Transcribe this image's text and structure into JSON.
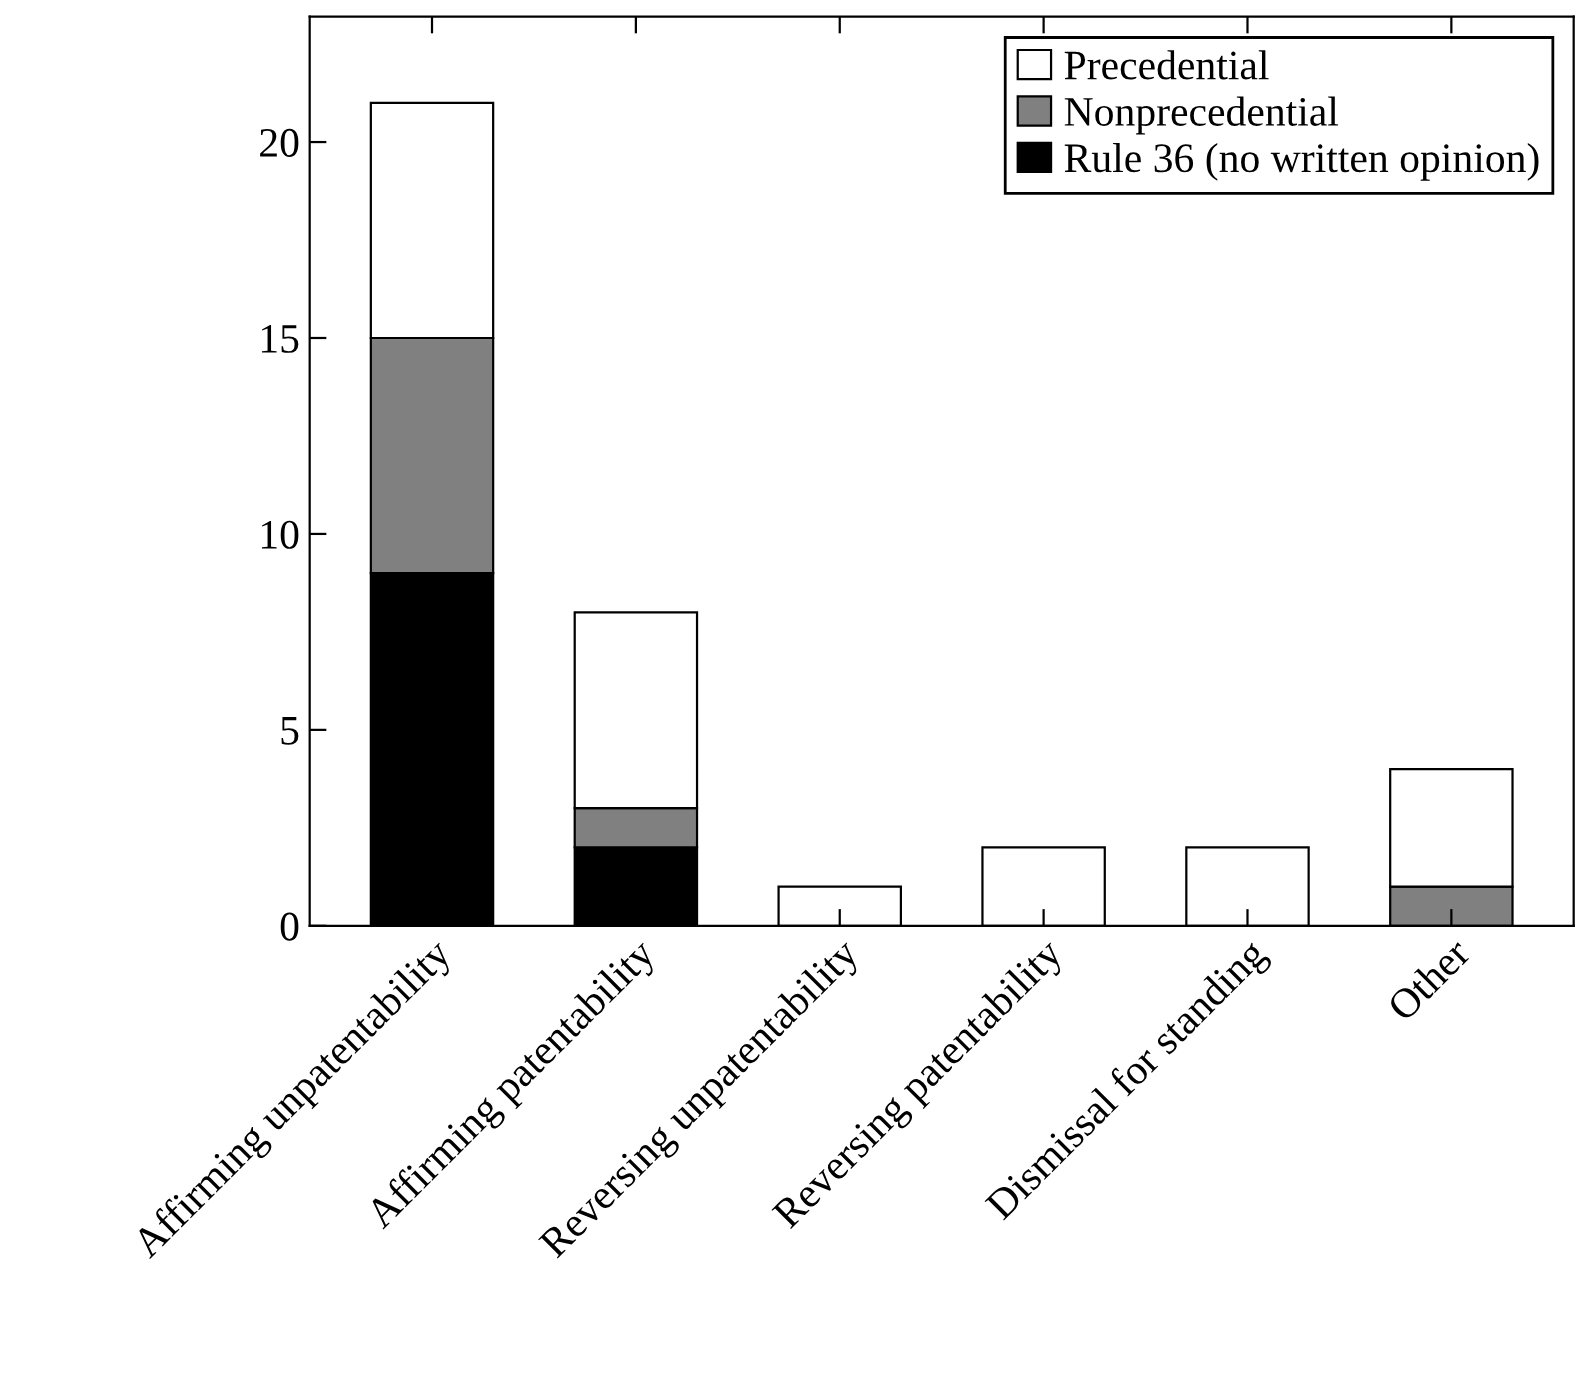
{
  "chart_data": {
    "type": "bar",
    "stacked": true,
    "categories": [
      "Affirming unpatentability",
      "Affirming patentability",
      "Reversing unpatentability",
      "Reversing patentability",
      "Dismissal for standing",
      "Other"
    ],
    "series": [
      {
        "name": "Rule 36 (no written opinion)",
        "color": "#000000",
        "values": [
          9,
          2,
          0,
          0,
          0,
          0
        ]
      },
      {
        "name": "Nonprecedential",
        "color": "#808080",
        "values": [
          6,
          1,
          0,
          0,
          0,
          1
        ]
      },
      {
        "name": "Precedential",
        "color": "#ffffff",
        "values": [
          6,
          5,
          1,
          2,
          2,
          3
        ]
      }
    ],
    "ylim": [
      0,
      23.2
    ],
    "yticks": [
      0,
      5,
      10,
      15,
      20
    ],
    "grid": false,
    "legend": "top right"
  }
}
